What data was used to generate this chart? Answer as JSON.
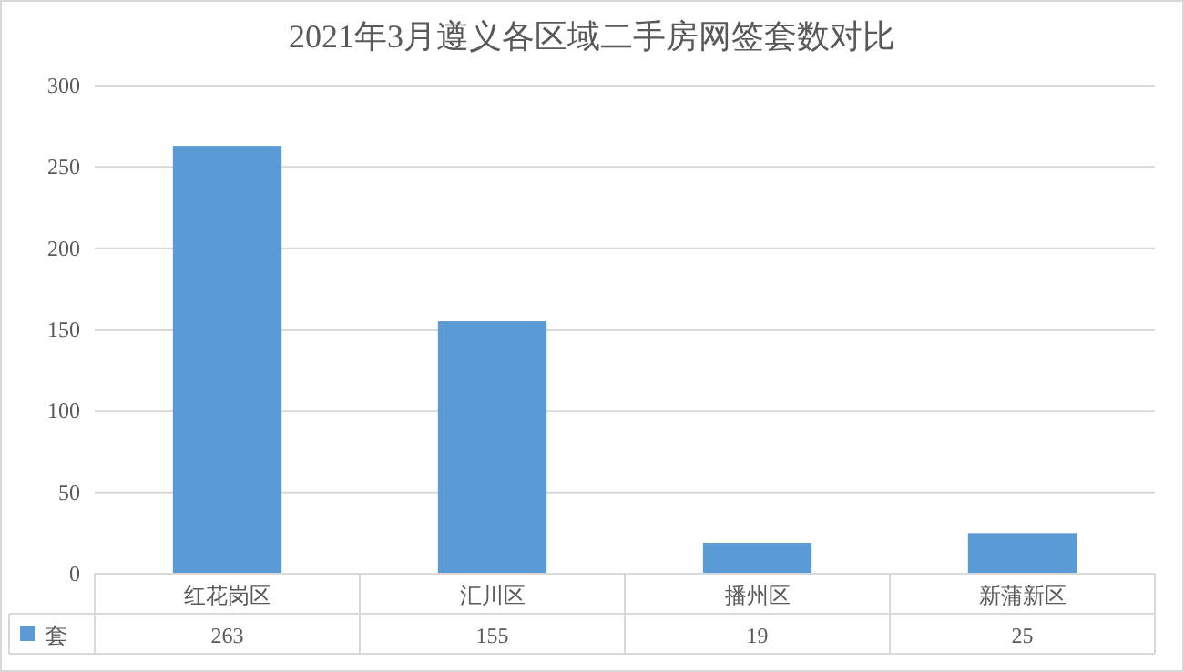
{
  "chart_data": {
    "type": "bar",
    "title": "2021年3月遵义各区域二手房网签套数对比",
    "categories": [
      "红花岗区",
      "汇川区",
      "播州区",
      "新蒲新区"
    ],
    "series": [
      {
        "name": "套",
        "color": "#5b9bd5",
        "values": [
          263,
          155,
          19,
          25
        ]
      }
    ],
    "ylim": [
      0,
      300
    ],
    "yticks": [
      0,
      50,
      100,
      150,
      200,
      250,
      300
    ],
    "grid": "y",
    "legend": "bottom",
    "data_labels": true
  }
}
